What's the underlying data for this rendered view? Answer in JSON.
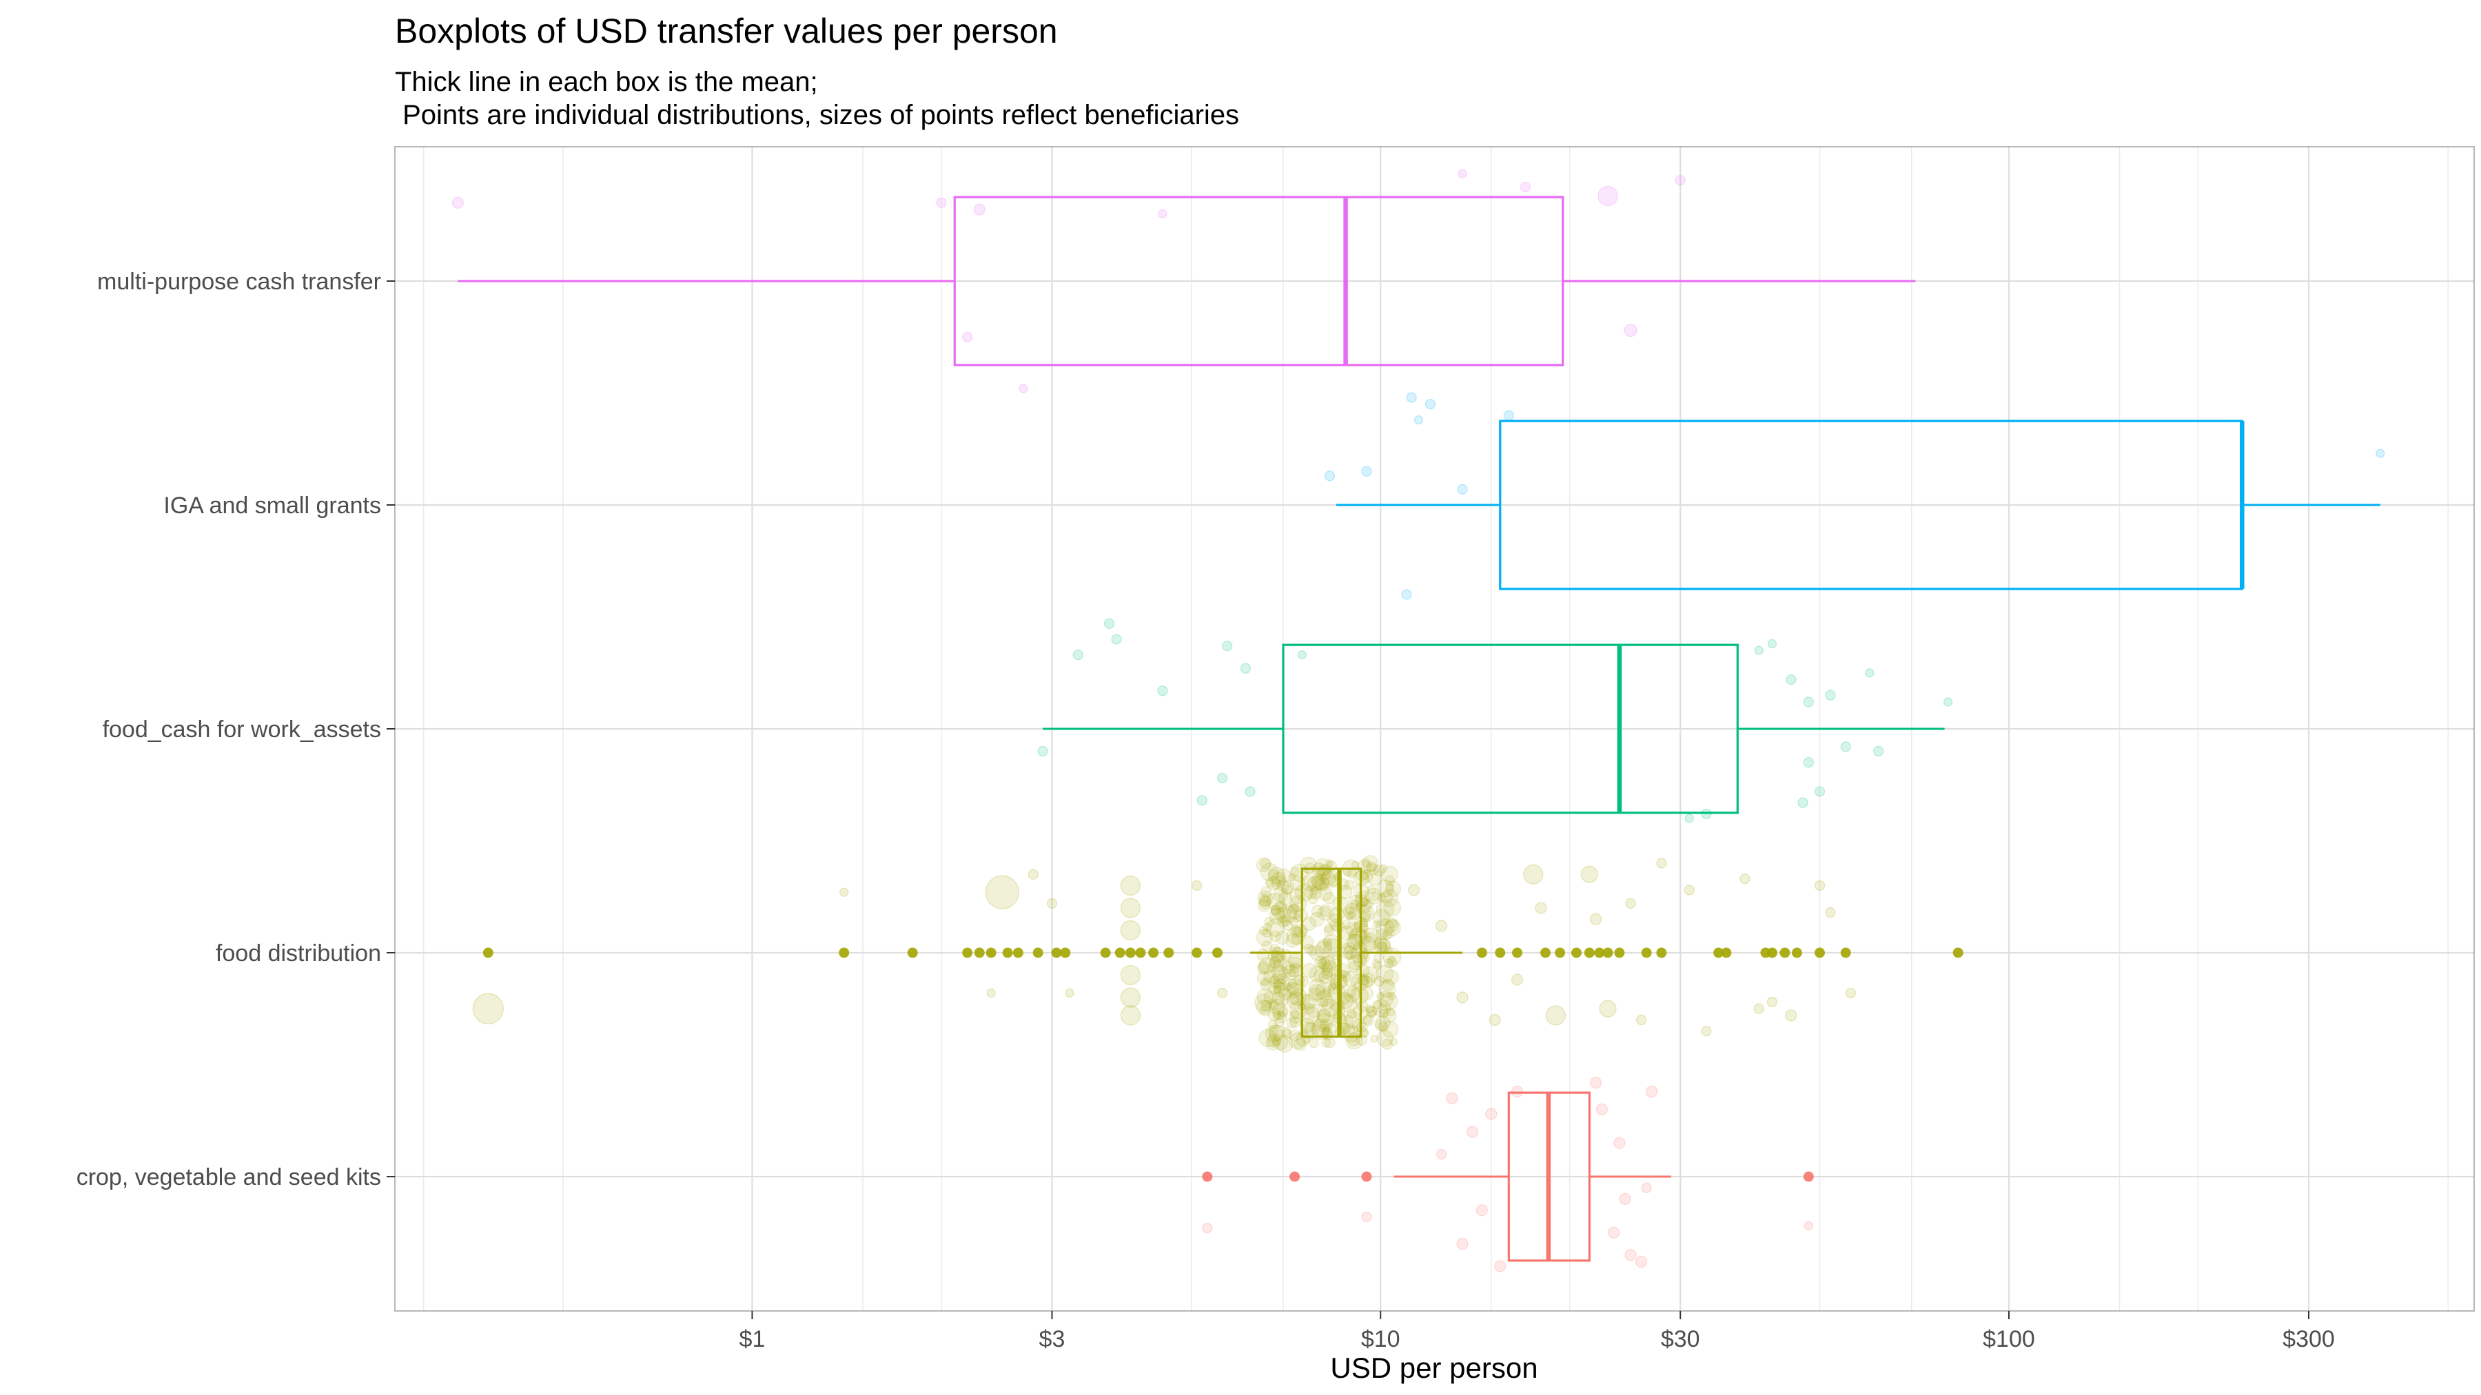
{
  "chart_data": {
    "type": "boxplot",
    "title": "Boxplots of USD transfer values per person",
    "subtitle": [
      "Thick line in each box is the mean;",
      " Points are individual distributions, sizes of points reflect beneficiaries"
    ],
    "xlabel": "USD per person",
    "x_scale": "log10",
    "xlim": [
      0.27,
      550
    ],
    "x_ticks": [
      {
        "value": 1,
        "label": "$1"
      },
      {
        "value": 3,
        "label": "$3"
      },
      {
        "value": 10,
        "label": "$10"
      },
      {
        "value": 30,
        "label": "$30"
      },
      {
        "value": 100,
        "label": "$100"
      },
      {
        "value": 300,
        "label": "$300"
      }
    ],
    "grid": true,
    "categories": [
      {
        "label": "multi-purpose cash transfer",
        "color": "#e76bf3",
        "whisker_low": 0.34,
        "q1": 2.1,
        "mean": 8.8,
        "q3": 19.5,
        "whisker_high": 71,
        "outliers": [],
        "jitter": [
          [
            0.34,
            0.35,
            8
          ],
          [
            2.0,
            0.35,
            7
          ],
          [
            2.3,
            0.32,
            8
          ],
          [
            4.5,
            0.3,
            6
          ],
          [
            17,
            0.42,
            7
          ],
          [
            23,
            0.38,
            14
          ],
          [
            30,
            0.45,
            7
          ],
          [
            2.2,
            -0.25,
            7
          ],
          [
            25,
            -0.22,
            9
          ],
          [
            2.7,
            -0.48,
            6
          ],
          [
            13.5,
            0.48,
            6
          ]
        ]
      },
      {
        "label": "IGA and small grants",
        "color": "#00b0f6",
        "whisker_low": 8.5,
        "q1": 15.5,
        "mean": 235,
        "q3": 235,
        "whisker_high": 390,
        "outliers": [],
        "jitter": [
          [
            8.3,
            0.13,
            7
          ],
          [
            9.5,
            0.15,
            7
          ],
          [
            11.2,
            0.48,
            7
          ],
          [
            12.0,
            0.45,
            7
          ],
          [
            11.5,
            0.38,
            6
          ],
          [
            13.5,
            0.07,
            7
          ],
          [
            390,
            0.23,
            6
          ],
          [
            11,
            -0.4,
            7
          ],
          [
            16,
            0.4,
            7
          ]
        ]
      },
      {
        "label": "food_cash for work_assets",
        "color": "#00bf7d",
        "whisker_low": 2.9,
        "q1": 7.0,
        "mean": 24,
        "q3": 37,
        "whisker_high": 79,
        "outliers": [],
        "jitter": [
          [
            3.3,
            0.33,
            7
          ],
          [
            3.8,
            0.4,
            7
          ],
          [
            3.7,
            0.47,
            7
          ],
          [
            4.5,
            0.17,
            7
          ],
          [
            5.7,
            0.37,
            7
          ],
          [
            6.1,
            0.27,
            7
          ],
          [
            5.6,
            -0.22,
            7
          ],
          [
            5.2,
            -0.32,
            7
          ],
          [
            6.2,
            -0.28,
            7
          ],
          [
            2.9,
            -0.1,
            7
          ],
          [
            7.5,
            0.33,
            6
          ],
          [
            42,
            0.38,
            6
          ],
          [
            45,
            0.22,
            7
          ],
          [
            48,
            0.12,
            7
          ],
          [
            52,
            0.15,
            7
          ],
          [
            55,
            -0.08,
            7
          ],
          [
            48,
            -0.15,
            7
          ],
          [
            50,
            -0.28,
            7
          ],
          [
            47,
            -0.33,
            7
          ],
          [
            80,
            0.12,
            6
          ],
          [
            62,
            -0.1,
            7
          ],
          [
            40,
            0.35,
            6
          ],
          [
            33,
            -0.38,
            7
          ],
          [
            31,
            -0.4,
            6
          ],
          [
            60,
            0.25,
            6
          ]
        ]
      },
      {
        "label": "food distribution",
        "color": "#a3a500",
        "whisker_low": 6.2,
        "q1": 7.5,
        "mean": 8.6,
        "q3": 9.3,
        "whisker_high": 13.5,
        "outliers": [
          0.38,
          1.4,
          1.8,
          2.2,
          2.3,
          2.4,
          2.55,
          2.65,
          2.85,
          3.05,
          3.15,
          3.65,
          3.85,
          4.0,
          4.15,
          4.35,
          4.6,
          5.1,
          5.5,
          14.5,
          15.5,
          16.5,
          18.3,
          19.3,
          20.5,
          21.5,
          22.3,
          23.0,
          24.0,
          26.5,
          28.0,
          34.5,
          35.5,
          41.0,
          42.0,
          44.0,
          46.0,
          50.0,
          55.0,
          83.0
        ],
        "jitter": [
          [
            0.38,
            -0.25,
            22
          ],
          [
            2.5,
            0.27,
            24
          ],
          [
            4.0,
            0.3,
            14
          ],
          [
            4.0,
            0.2,
            14
          ],
          [
            4.0,
            0.1,
            14
          ],
          [
            4.0,
            -0.1,
            14
          ],
          [
            4.0,
            -0.2,
            14
          ],
          [
            4.0,
            -0.28,
            14
          ],
          [
            1.4,
            0.27,
            6
          ],
          [
            2.8,
            0.35,
            7
          ],
          [
            3.0,
            0.22,
            7
          ],
          [
            3.2,
            -0.18,
            6
          ],
          [
            2.4,
            -0.18,
            6
          ],
          [
            5.1,
            0.3,
            7
          ],
          [
            5.6,
            -0.18,
            7
          ],
          [
            11.3,
            0.28,
            8
          ],
          [
            12.5,
            0.12,
            8
          ],
          [
            13.5,
            -0.2,
            8
          ],
          [
            15.2,
            -0.3,
            8
          ],
          [
            17.5,
            0.35,
            14
          ],
          [
            19,
            -0.28,
            14
          ],
          [
            21.5,
            0.35,
            12
          ],
          [
            23,
            -0.25,
            12
          ],
          [
            22,
            0.15,
            8
          ],
          [
            18,
            0.2,
            8
          ],
          [
            16.5,
            -0.12,
            8
          ],
          [
            28,
            0.4,
            7
          ],
          [
            31,
            0.28,
            7
          ],
          [
            33,
            -0.35,
            7
          ],
          [
            38,
            0.33,
            7
          ],
          [
            40,
            -0.25,
            7
          ],
          [
            42,
            -0.22,
            7
          ],
          [
            45,
            -0.28,
            8
          ],
          [
            50,
            0.3,
            7
          ],
          [
            52,
            0.18,
            7
          ],
          [
            56,
            -0.18,
            7
          ],
          [
            25,
            0.22,
            7
          ],
          [
            26,
            -0.3,
            7
          ]
        ]
      },
      {
        "label": "crop, vegetable and seed kits",
        "color": "#f8766d",
        "whisker_low": 10.5,
        "q1": 16,
        "mean": 18.5,
        "q3": 21.5,
        "whisker_high": 29,
        "outliers": [
          5.3,
          7.3,
          9.5,
          48
        ],
        "jitter": [
          [
            5.3,
            -0.23,
            7
          ],
          [
            9.5,
            -0.18,
            7
          ],
          [
            48,
            -0.22,
            6
          ],
          [
            13,
            0.35,
            8
          ],
          [
            14,
            0.2,
            8
          ],
          [
            15,
            0.28,
            8
          ],
          [
            14.5,
            -0.15,
            8
          ],
          [
            13.5,
            -0.3,
            8
          ],
          [
            15.5,
            -0.4,
            8
          ],
          [
            22.5,
            0.3,
            8
          ],
          [
            24,
            0.15,
            8
          ],
          [
            23.5,
            -0.25,
            8
          ],
          [
            25,
            -0.35,
            8
          ],
          [
            26,
            -0.38,
            8
          ],
          [
            27,
            0.38,
            8
          ],
          [
            22,
            0.42,
            8
          ],
          [
            16.5,
            0.38,
            8
          ],
          [
            12.5,
            0.1,
            7
          ],
          [
            24.5,
            -0.1,
            8
          ],
          [
            26.5,
            -0.05,
            7
          ]
        ]
      }
    ]
  }
}
